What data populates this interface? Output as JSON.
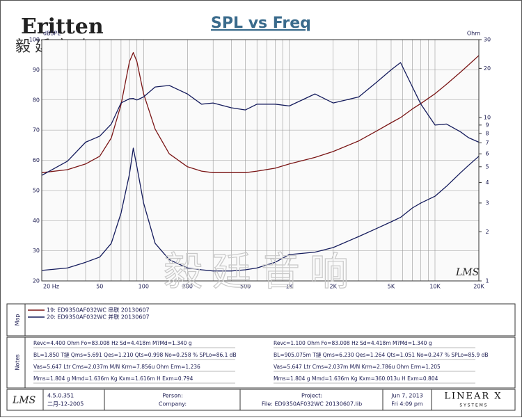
{
  "header": {
    "logo": "Eritten",
    "logo_cn": "毅廷音响"
  },
  "chart_data": {
    "type": "line",
    "title": "SPL vs Freq",
    "y_label": "dBSPL",
    "y2_label": "Ohm",
    "watermark": "LMS",
    "log_x": true,
    "log_y2": true,
    "grid": true,
    "xlim": [
      20,
      20000
    ],
    "xticks": [
      {
        "value": 20,
        "label": "20 Hz"
      },
      50,
      100,
      200,
      500,
      {
        "value": 1000,
        "label": "1K"
      },
      {
        "value": 2000,
        "label": "2K"
      },
      {
        "value": 5000,
        "label": "5K"
      },
      {
        "value": 10000,
        "label": "10K"
      },
      {
        "value": 20000,
        "label": "20K"
      }
    ],
    "x_minor_ticks": [
      30,
      40,
      60,
      70,
      80,
      90,
      300,
      400,
      600,
      700,
      800,
      900,
      3000,
      4000,
      6000,
      7000,
      8000,
      9000
    ],
    "ylim": [
      20,
      100
    ],
    "yticks": [
      20,
      30,
      40,
      50,
      60,
      70,
      80,
      90,
      100
    ],
    "y2lim": [
      1,
      30
    ],
    "y2ticks": [
      1,
      2,
      3,
      4,
      5,
      6,
      7,
      8,
      9,
      10,
      20,
      30
    ],
    "x": [
      20,
      30,
      40,
      50,
      60,
      70,
      80,
      85,
      90,
      100,
      120,
      150,
      200,
      250,
      300,
      400,
      500,
      600,
      800,
      1000,
      1500,
      2000,
      3000,
      4000,
      5000,
      5800,
      7000,
      8000,
      10000,
      12000,
      15000,
      17000,
      20000
    ],
    "series": [
      {
        "name": "19: ED9350AF032WC 串联 20130607",
        "color": "#7a1515",
        "axis": "y2",
        "values": [
          4.6,
          4.8,
          5.2,
          5.8,
          7.5,
          12,
          22,
          25,
          22,
          14,
          8.5,
          6,
          5,
          4.7,
          4.6,
          4.6,
          4.6,
          4.7,
          4.9,
          5.2,
          5.7,
          6.2,
          7.2,
          8.3,
          9.3,
          10,
          11.3,
          12.2,
          14,
          16,
          19,
          21,
          24
        ]
      },
      {
        "name": "20: ED9350AF032WC 并联 20130607",
        "color": "#141b5c",
        "axis": "y2",
        "values": [
          1.16,
          1.2,
          1.3,
          1.4,
          1.7,
          2.6,
          4.5,
          6.5,
          5,
          3,
          1.7,
          1.35,
          1.2,
          1.17,
          1.15,
          1.15,
          1.17,
          1.2,
          1.3,
          1.45,
          1.5,
          1.6,
          1.87,
          2.1,
          2.3,
          2.45,
          2.8,
          3,
          3.3,
          3.8,
          4.6,
          5.1,
          5.8
        ]
      },
      {
        "color": "#141b5c",
        "values": [
          55,
          59.7,
          66,
          68,
          72,
          79,
          80.4,
          80.5,
          80,
          81,
          84.3,
          84.8,
          82,
          78.6,
          79,
          77.4,
          76.7,
          78.6,
          78.6,
          78,
          82,
          79,
          81,
          86,
          90,
          92.4,
          84.3,
          78.6,
          71.7,
          72,
          69.4,
          67.5,
          66
        ]
      }
    ]
  },
  "map": {
    "title": "Map"
  },
  "notes": {
    "title": "Notes",
    "left": [
      "Revc=4.400 Ohm  Fo=83.008 Hz  Sd=4.418m M?Md=1.340 g",
      "BL=1.850 T鏈  Qms=5.691  Qes=1.210  Qts=0.998  No=0.258 %  SPLo=86.1 dB",
      "Vas=5.647 Ltr  Cms=2.037m M/N  Krm=7.856u Ohm  Erm=1.236",
      "Mms=1.804 g  Mmd=1.636m Kg  Kxm=1.616m H  Exm=0.794"
    ],
    "right": [
      "Revc=1.100 Ohm  Fo=83.008 Hz  Sd=4.418m M?Md=1.340 g",
      "BL=905.075m T鏈  Qms=6.230  Qes=1.264  Qts=1.051  No=0.247 %  SPLo=85.9 dB",
      "Vas=5.647 Ltr  Cms=2.037m M/N  Krm=2.786u Ohm  Erm=1.205",
      "Mms=1.804 g  Mmd=1.636m Kg  Kxm=360.013u H  Exm=0.804"
    ]
  },
  "footer": {
    "logo": "LMS",
    "version": "4.5.0.351",
    "date": "二月-12-2005",
    "person": "Person:",
    "company": "Company:",
    "project": "Project:",
    "file": "File: ED9350AF032WC  20130607.lib",
    "run_date": "Jun  7, 2013",
    "run_time": "Fri  4:09 pm",
    "brand": "LINEAR X",
    "brand_sub": "S Y S T E M S"
  }
}
